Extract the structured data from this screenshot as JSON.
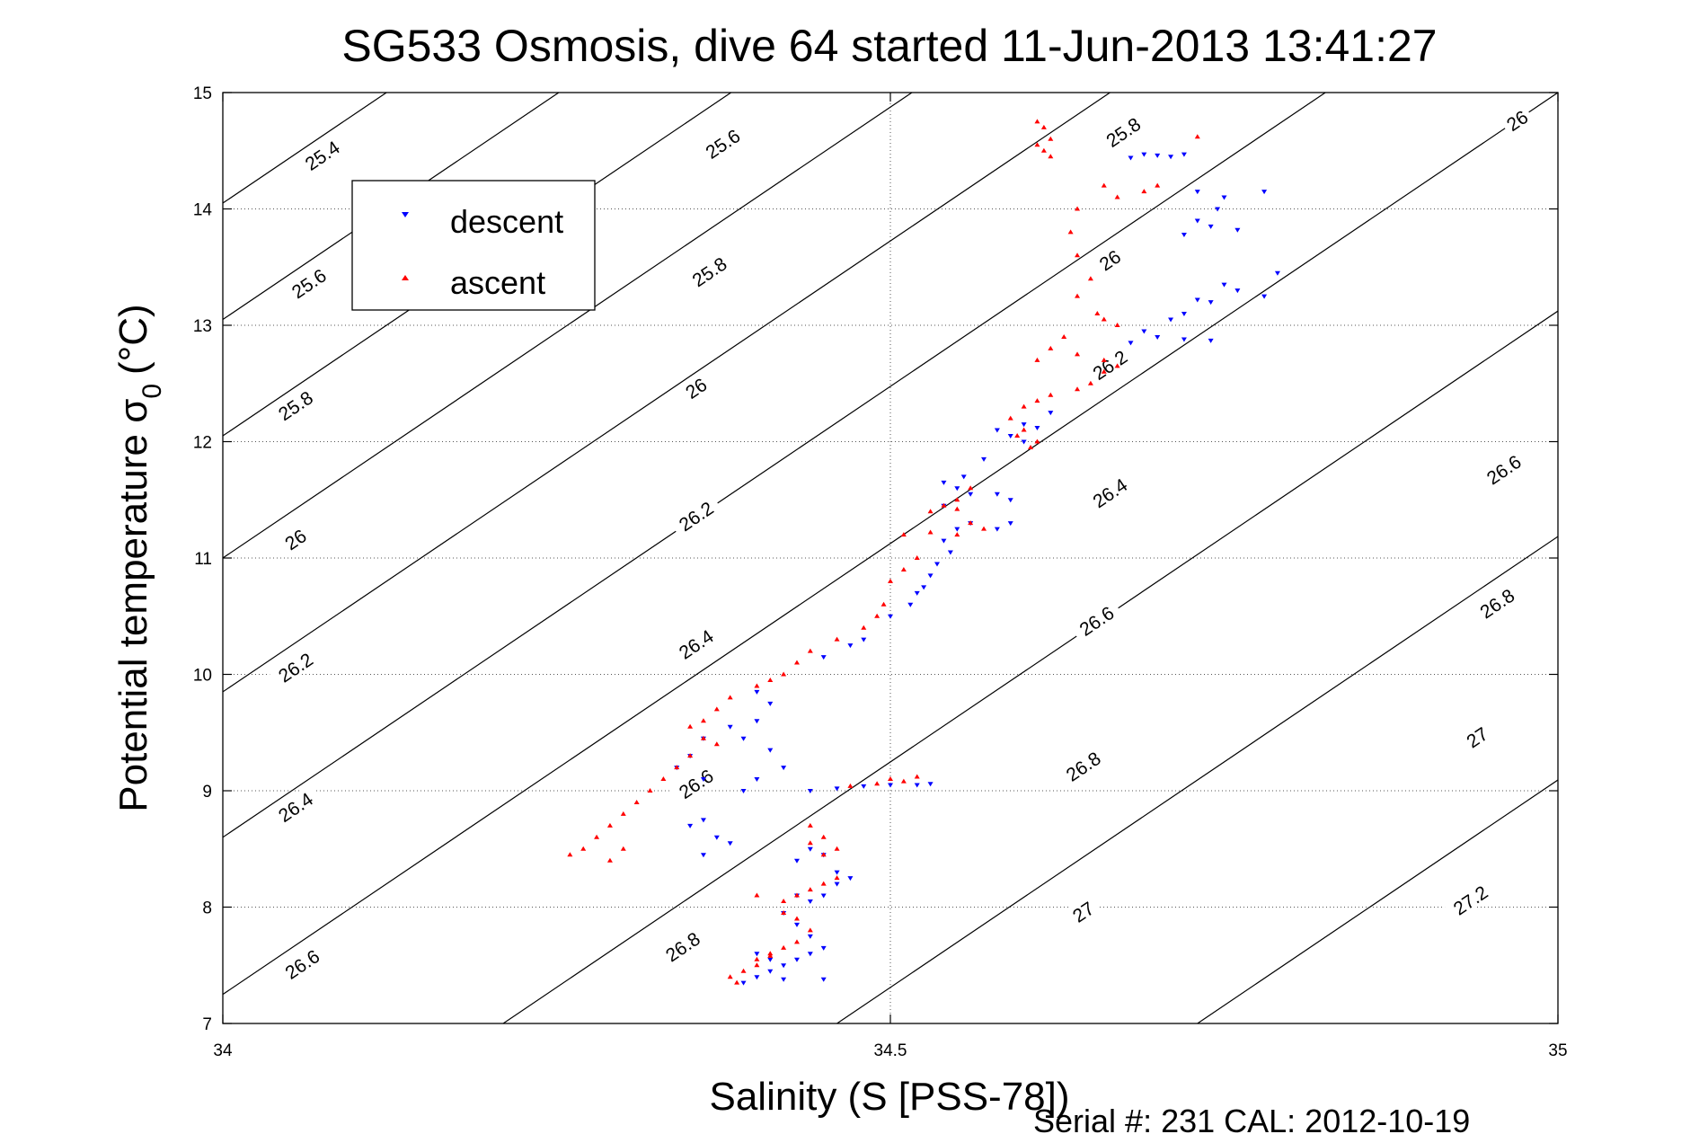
{
  "chart_data": {
    "type": "scatter",
    "title": "SG533 Osmosis, dive 64 started 11-Jun-2013 13:41:27",
    "xlabel": "Salinity (S [PSS-78])",
    "ylabel_main": "Potential temperature σ",
    "ylabel_sub": "0",
    "ylabel_unit": "(°C)",
    "xlim": [
      34,
      35
    ],
    "ylim": [
      7,
      15
    ],
    "x_ticks": [
      34,
      34.5,
      35
    ],
    "x_tick_labels": [
      "34",
      "34.5",
      "35"
    ],
    "y_ticks": [
      7,
      8,
      9,
      10,
      11,
      12,
      13,
      14,
      15
    ],
    "y_tick_labels": [
      "7",
      "8",
      "9",
      "10",
      "11",
      "12",
      "13",
      "14",
      "15"
    ],
    "grid": true,
    "legend": {
      "placement": "top-left",
      "entries": [
        "descent",
        "ascent"
      ]
    },
    "footer": "Serial #: 231  CAL: 2012-10-19",
    "contours": [
      {
        "level": 25.4,
        "label": "25.4",
        "s0": 34.0,
        "t0": 14.05,
        "slope": 7.75
      },
      {
        "level": 25.6,
        "label": "25.6",
        "s0": 34.0,
        "t0": 13.05,
        "slope": 7.75
      },
      {
        "level": 25.8,
        "label": "25.8",
        "s0": 34.0,
        "t0": 12.05,
        "slope": 7.75
      },
      {
        "level": 26.0,
        "label": "26",
        "s0": 34.0,
        "t0": 11.0,
        "slope": 7.75
      },
      {
        "level": 26.2,
        "label": "26.2",
        "s0": 34.0,
        "t0": 9.85,
        "slope": 7.75
      },
      {
        "level": 26.4,
        "label": "26.4",
        "s0": 34.0,
        "t0": 8.6,
        "slope": 7.75
      },
      {
        "level": 26.6,
        "label": "26.6",
        "s0": 34.0,
        "t0": 7.25,
        "slope": 7.75
      },
      {
        "level": 26.8,
        "label": "26.8",
        "s0": 34.21,
        "t0": 7.0,
        "slope": 7.75
      },
      {
        "level": 27.0,
        "label": "27",
        "s0": 34.46,
        "t0": 7.0,
        "slope": 7.75
      },
      {
        "level": 27.2,
        "label": "27.2",
        "s0": 34.73,
        "t0": 7.0,
        "slope": 7.75
      }
    ],
    "contour_labels": [
      {
        "text": "25.4",
        "s": 34.075,
        "t": 14.45
      },
      {
        "text": "25.6",
        "s": 34.375,
        "t": 14.55
      },
      {
        "text": "25.8",
        "s": 34.675,
        "t": 14.65
      },
      {
        "text": "26",
        "s": 34.97,
        "t": 14.75
      },
      {
        "text": "25.6",
        "s": 34.065,
        "t": 13.35
      },
      {
        "text": "25.8",
        "s": 34.365,
        "t": 13.45
      },
      {
        "text": "26",
        "s": 34.665,
        "t": 13.55
      },
      {
        "text": "25.8",
        "s": 34.055,
        "t": 12.3
      },
      {
        "text": "26",
        "s": 34.355,
        "t": 12.45
      },
      {
        "text": "26.2",
        "s": 34.665,
        "t": 12.65
      },
      {
        "text": "26",
        "s": 34.055,
        "t": 11.15
      },
      {
        "text": "26.2",
        "s": 34.355,
        "t": 11.35
      },
      {
        "text": "26.4",
        "s": 34.665,
        "t": 11.55
      },
      {
        "text": "26.6",
        "s": 34.96,
        "t": 11.75
      },
      {
        "text": "26.2",
        "s": 34.055,
        "t": 10.05
      },
      {
        "text": "26.4",
        "s": 34.355,
        "t": 10.25
      },
      {
        "text": "26.6",
        "s": 34.655,
        "t": 10.45
      },
      {
        "text": "26.8",
        "s": 34.955,
        "t": 10.6
      },
      {
        "text": "26.4",
        "s": 34.055,
        "t": 8.85
      },
      {
        "text": "26.6",
        "s": 34.355,
        "t": 9.05
      },
      {
        "text": "26.8",
        "s": 34.645,
        "t": 9.2
      },
      {
        "text": "27",
        "s": 34.94,
        "t": 9.45
      },
      {
        "text": "26.6",
        "s": 34.06,
        "t": 7.5
      },
      {
        "text": "26.8",
        "s": 34.345,
        "t": 7.65
      },
      {
        "text": "27",
        "s": 34.645,
        "t": 7.95
      },
      {
        "text": "27.2",
        "s": 34.935,
        "t": 8.05
      }
    ],
    "series": [
      {
        "name": "descent",
        "color": "#0000ff",
        "marker": "triangle-down",
        "points": [
          [
            34.71,
            14.45
          ],
          [
            34.7,
            14.46
          ],
          [
            34.69,
            14.47
          ],
          [
            34.68,
            14.44
          ],
          [
            34.72,
            14.47
          ],
          [
            34.73,
            14.15
          ],
          [
            34.745,
            14.0
          ],
          [
            34.73,
            13.9
          ],
          [
            34.74,
            13.85
          ],
          [
            34.72,
            13.78
          ],
          [
            34.76,
            13.82
          ],
          [
            34.75,
            14.1
          ],
          [
            34.78,
            14.15
          ],
          [
            34.75,
            13.35
          ],
          [
            34.78,
            13.25
          ],
          [
            34.76,
            13.3
          ],
          [
            34.74,
            13.2
          ],
          [
            34.72,
            13.1
          ],
          [
            34.71,
            13.05
          ],
          [
            34.69,
            12.95
          ],
          [
            34.7,
            12.9
          ],
          [
            34.68,
            12.85
          ],
          [
            34.72,
            12.88
          ],
          [
            34.74,
            12.87
          ],
          [
            34.79,
            13.45
          ],
          [
            34.73,
            13.22
          ],
          [
            34.62,
            12.25
          ],
          [
            34.6,
            12.15
          ],
          [
            34.59,
            12.05
          ],
          [
            34.58,
            12.1
          ],
          [
            34.6,
            12.0
          ],
          [
            34.61,
            12.12
          ],
          [
            34.57,
            11.85
          ],
          [
            34.555,
            11.7
          ],
          [
            34.54,
            11.65
          ],
          [
            34.55,
            11.6
          ],
          [
            34.56,
            11.55
          ],
          [
            34.58,
            11.55
          ],
          [
            34.59,
            11.5
          ],
          [
            34.54,
            11.45
          ],
          [
            34.56,
            11.3
          ],
          [
            34.58,
            11.25
          ],
          [
            34.59,
            11.3
          ],
          [
            34.55,
            11.25
          ],
          [
            34.54,
            11.15
          ],
          [
            34.545,
            11.05
          ],
          [
            34.535,
            10.95
          ],
          [
            34.53,
            10.85
          ],
          [
            34.525,
            10.75
          ],
          [
            34.52,
            10.7
          ],
          [
            34.515,
            10.6
          ],
          [
            34.5,
            10.5
          ],
          [
            34.48,
            10.3
          ],
          [
            34.47,
            10.25
          ],
          [
            34.45,
            10.15
          ],
          [
            34.4,
            9.85
          ],
          [
            34.41,
            9.75
          ],
          [
            34.4,
            9.6
          ],
          [
            34.38,
            9.55
          ],
          [
            34.39,
            9.45
          ],
          [
            34.41,
            9.35
          ],
          [
            34.42,
            9.2
          ],
          [
            34.4,
            9.1
          ],
          [
            34.39,
            9.0
          ],
          [
            34.36,
            9.45
          ],
          [
            34.35,
            9.3
          ],
          [
            34.34,
            9.2
          ],
          [
            34.36,
            9.1
          ],
          [
            34.5,
            9.05
          ],
          [
            34.52,
            9.05
          ],
          [
            34.53,
            9.06
          ],
          [
            34.48,
            9.04
          ],
          [
            34.46,
            9.02
          ],
          [
            34.44,
            9.0
          ],
          [
            34.35,
            8.7
          ],
          [
            34.36,
            8.75
          ],
          [
            34.37,
            8.6
          ],
          [
            34.38,
            8.55
          ],
          [
            34.36,
            8.45
          ],
          [
            34.44,
            8.5
          ],
          [
            34.45,
            8.45
          ],
          [
            34.43,
            8.4
          ],
          [
            34.46,
            8.3
          ],
          [
            34.47,
            8.25
          ],
          [
            34.46,
            8.2
          ],
          [
            34.45,
            8.1
          ],
          [
            34.44,
            8.05
          ],
          [
            34.43,
            8.1
          ],
          [
            34.42,
            7.95
          ],
          [
            34.43,
            7.85
          ],
          [
            34.44,
            7.75
          ],
          [
            34.45,
            7.65
          ],
          [
            34.44,
            7.6
          ],
          [
            34.43,
            7.55
          ],
          [
            34.42,
            7.5
          ],
          [
            34.41,
            7.45
          ],
          [
            34.4,
            7.6
          ],
          [
            34.41,
            7.55
          ],
          [
            34.4,
            7.4
          ],
          [
            34.39,
            7.35
          ],
          [
            34.42,
            7.38
          ],
          [
            34.45,
            7.38
          ]
        ]
      },
      {
        "name": "ascent",
        "color": "#ff0000",
        "marker": "triangle-up",
        "points": [
          [
            34.61,
            14.75
          ],
          [
            34.615,
            14.7
          ],
          [
            34.62,
            14.6
          ],
          [
            34.615,
            14.5
          ],
          [
            34.62,
            14.45
          ],
          [
            34.61,
            14.55
          ],
          [
            34.73,
            14.62
          ],
          [
            34.7,
            14.2
          ],
          [
            34.69,
            14.15
          ],
          [
            34.67,
            14.1
          ],
          [
            34.66,
            14.2
          ],
          [
            34.64,
            14.0
          ],
          [
            34.635,
            13.8
          ],
          [
            34.64,
            13.6
          ],
          [
            34.65,
            13.4
          ],
          [
            34.64,
            13.25
          ],
          [
            34.655,
            13.1
          ],
          [
            34.66,
            13.05
          ],
          [
            34.67,
            13.0
          ],
          [
            34.63,
            12.9
          ],
          [
            34.62,
            12.8
          ],
          [
            34.61,
            12.7
          ],
          [
            34.64,
            12.75
          ],
          [
            34.66,
            12.7
          ],
          [
            34.67,
            12.65
          ],
          [
            34.66,
            12.6
          ],
          [
            34.65,
            12.5
          ],
          [
            34.64,
            12.45
          ],
          [
            34.62,
            12.4
          ],
          [
            34.61,
            12.35
          ],
          [
            34.6,
            12.3
          ],
          [
            34.59,
            12.2
          ],
          [
            34.6,
            12.1
          ],
          [
            34.61,
            12.0
          ],
          [
            34.605,
            11.95
          ],
          [
            34.595,
            12.05
          ],
          [
            34.56,
            11.6
          ],
          [
            34.55,
            11.5
          ],
          [
            34.54,
            11.45
          ],
          [
            34.53,
            11.4
          ],
          [
            34.55,
            11.42
          ],
          [
            34.56,
            11.3
          ],
          [
            34.57,
            11.25
          ],
          [
            34.55,
            11.2
          ],
          [
            34.53,
            11.22
          ],
          [
            34.51,
            11.2
          ],
          [
            34.52,
            11.0
          ],
          [
            34.51,
            10.9
          ],
          [
            34.5,
            10.8
          ],
          [
            34.495,
            10.6
          ],
          [
            34.49,
            10.5
          ],
          [
            34.48,
            10.4
          ],
          [
            34.46,
            10.3
          ],
          [
            34.44,
            10.2
          ],
          [
            34.43,
            10.1
          ],
          [
            34.42,
            10.0
          ],
          [
            34.41,
            9.95
          ],
          [
            34.4,
            9.9
          ],
          [
            34.38,
            9.8
          ],
          [
            34.37,
            9.7
          ],
          [
            34.36,
            9.6
          ],
          [
            34.35,
            9.55
          ],
          [
            34.36,
            9.45
          ],
          [
            34.37,
            9.4
          ],
          [
            34.35,
            9.3
          ],
          [
            34.34,
            9.2
          ],
          [
            34.33,
            9.1
          ],
          [
            34.32,
            9.0
          ],
          [
            34.31,
            8.9
          ],
          [
            34.3,
            8.8
          ],
          [
            34.29,
            8.7
          ],
          [
            34.28,
            8.6
          ],
          [
            34.27,
            8.5
          ],
          [
            34.26,
            8.45
          ],
          [
            34.29,
            8.4
          ],
          [
            34.3,
            8.5
          ],
          [
            34.5,
            9.1
          ],
          [
            34.52,
            9.12
          ],
          [
            34.51,
            9.08
          ],
          [
            34.49,
            9.06
          ],
          [
            34.47,
            9.04
          ],
          [
            34.44,
            8.7
          ],
          [
            34.45,
            8.6
          ],
          [
            34.44,
            8.55
          ],
          [
            34.46,
            8.5
          ],
          [
            34.45,
            8.45
          ],
          [
            34.46,
            8.25
          ],
          [
            34.45,
            8.2
          ],
          [
            34.44,
            8.15
          ],
          [
            34.43,
            8.1
          ],
          [
            34.42,
            8.05
          ],
          [
            34.4,
            8.1
          ],
          [
            34.42,
            7.95
          ],
          [
            34.43,
            7.9
          ],
          [
            34.44,
            7.8
          ],
          [
            34.43,
            7.7
          ],
          [
            34.42,
            7.65
          ],
          [
            34.41,
            7.6
          ],
          [
            34.4,
            7.5
          ],
          [
            34.39,
            7.45
          ],
          [
            34.38,
            7.4
          ],
          [
            34.385,
            7.35
          ],
          [
            34.4,
            7.55
          ],
          [
            34.41,
            7.58
          ]
        ]
      }
    ]
  }
}
